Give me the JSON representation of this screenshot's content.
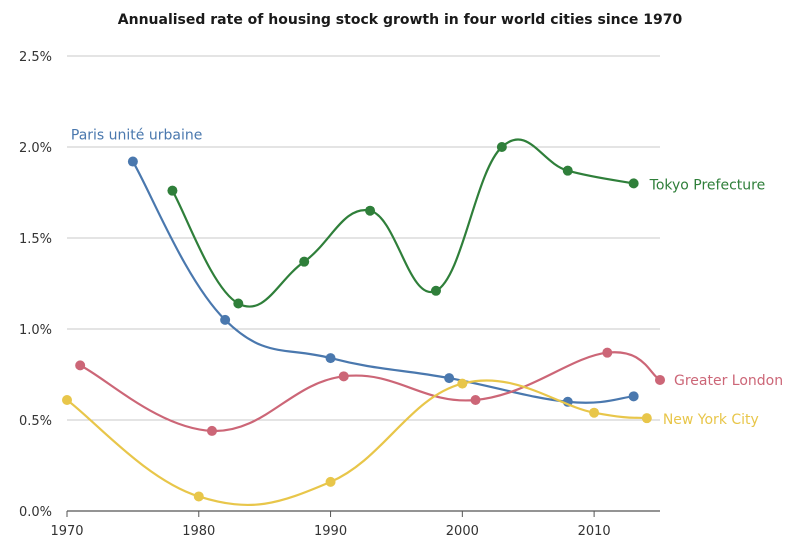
{
  "chart_data": {
    "type": "line",
    "title": "Annualised rate of housing stock growth in four world cities since 1970",
    "xlabel": "",
    "ylabel": "",
    "xlim": [
      1970,
      2015
    ],
    "ylim": [
      0,
      2.5
    ],
    "x_ticks": [
      1970,
      1980,
      1990,
      2000,
      2010
    ],
    "y_ticks": [
      {
        "value": 0,
        "label": "0.0%"
      },
      {
        "value": 0.5,
        "label": "0.5%"
      },
      {
        "value": 1.0,
        "label": "1.0%"
      },
      {
        "value": 1.5,
        "label": "1.5%"
      },
      {
        "value": 2.0,
        "label": "2.0%"
      },
      {
        "value": 2.5,
        "label": "2.5%"
      }
    ],
    "grid": "horizontal",
    "series": [
      {
        "name": "Paris unité urbaine",
        "color": "#4a78ae",
        "label_position": "start",
        "points": [
          [
            1975,
            1.92
          ],
          [
            1982,
            1.05
          ],
          [
            1990,
            0.84
          ],
          [
            1999,
            0.73
          ],
          [
            2008,
            0.6
          ],
          [
            2013,
            0.63
          ]
        ]
      },
      {
        "name": "Tokyo Prefecture",
        "color": "#2f7f3a",
        "label_position": "end",
        "points": [
          [
            1978,
            1.76
          ],
          [
            1983,
            1.14
          ],
          [
            1988,
            1.37
          ],
          [
            1993,
            1.65
          ],
          [
            1998,
            1.21
          ],
          [
            2003,
            2.0
          ],
          [
            2008,
            1.87
          ],
          [
            2013,
            1.8
          ]
        ]
      },
      {
        "name": "Greater London",
        "color": "#cc6677",
        "label_position": "end",
        "points": [
          [
            1971,
            0.8
          ],
          [
            1981,
            0.44
          ],
          [
            1991,
            0.74
          ],
          [
            2001,
            0.61
          ],
          [
            2011,
            0.87
          ],
          [
            2015,
            0.72
          ]
        ]
      },
      {
        "name": "New York City",
        "color": "#e8c64a",
        "label_position": "end",
        "points": [
          [
            1970,
            0.61
          ],
          [
            1980,
            0.08
          ],
          [
            1990,
            0.16
          ],
          [
            2000,
            0.7
          ],
          [
            2010,
            0.54
          ],
          [
            2014,
            0.51
          ]
        ]
      }
    ]
  }
}
